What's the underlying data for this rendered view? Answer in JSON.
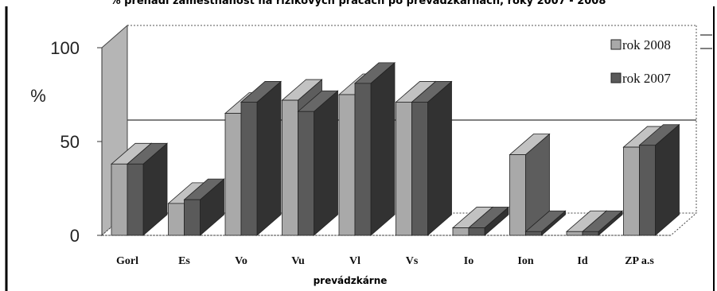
{
  "chart_data": {
    "type": "bar",
    "title": "% prenaďl zamestnanosť na rizikových prácach po prevádzkarňach, roky 2007 - 2008",
    "xlabel": "prevádzkárne",
    "ylabel": "%",
    "ylim": [
      0,
      100
    ],
    "yticks": [
      0,
      50,
      100
    ],
    "categories": [
      "Gorl",
      "Es",
      "Vo",
      "Vu",
      "Vl",
      "Vs",
      "Io",
      "Ion",
      "Id",
      "ZP a.s"
    ],
    "series": [
      {
        "name": "rok 2008",
        "values": [
          38,
          17,
          65,
          72,
          75,
          71,
          4,
          43,
          2,
          47
        ],
        "color": "#a9a9a9"
      },
      {
        "name": "rok 2007",
        "values": [
          38,
          19,
          71,
          66,
          81,
          71,
          4,
          2,
          2,
          48
        ],
        "color": "#5a5a5a"
      }
    ],
    "legend_position": "top-right",
    "grid": false
  }
}
